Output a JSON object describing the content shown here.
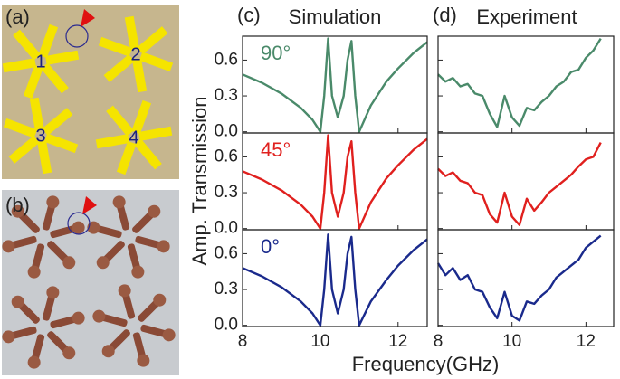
{
  "figure": {
    "panel_labels": [
      "(a)",
      "(b)",
      "(c)",
      "(d)"
    ],
    "column_titles": [
      "Simulation",
      "Experiment"
    ],
    "y_label": "Amp. Transmission",
    "x_label": "Frequency(GHz)",
    "unit_numbers": [
      "1",
      "2",
      "3",
      "4"
    ]
  },
  "chart_data": [
    {
      "type": "line",
      "annotation": "90°",
      "xlim": [
        8,
        12.75
      ],
      "ylim": [
        -0.01,
        0.8
      ],
      "xticks": [
        8,
        10,
        12
      ],
      "yticks": [
        {
          "value": 0,
          "label": "0.0"
        },
        {
          "value": 0.3,
          "label": "0.3"
        },
        {
          "value": 0.6,
          "label": "0.6"
        }
      ],
      "x": [
        8,
        8.5,
        9,
        9.5,
        9.8,
        10,
        10.1,
        10.2,
        10.3,
        10.45,
        10.6,
        10.7,
        10.8,
        10.9,
        11,
        11.3,
        11.7,
        12,
        12.4,
        12.75
      ],
      "series": [
        {
          "color": "#4a8a6a",
          "values": [
            0.48,
            0.41,
            0.32,
            0.2,
            0.1,
            0.0,
            0.3,
            0.78,
            0.3,
            0.12,
            0.3,
            0.6,
            0.76,
            0.3,
            0.0,
            0.22,
            0.42,
            0.53,
            0.66,
            0.75
          ]
        }
      ]
    },
    {
      "type": "line",
      "xlim": [
        8,
        12.75
      ],
      "ylim": [
        -0.01,
        0.8
      ],
      "xticks": [
        8,
        10,
        12
      ],
      "yticks": [
        0,
        0.3,
        0.6
      ],
      "x": [
        8,
        8.2,
        8.4,
        8.6,
        8.8,
        9,
        9.2,
        9.4,
        9.6,
        9.8,
        10,
        10.2,
        10.4,
        10.6,
        10.8,
        11,
        11.2,
        11.4,
        11.6,
        11.8,
        12,
        12.2,
        12.4
      ],
      "series": [
        {
          "color": "#4a8a6a",
          "values": [
            0.48,
            0.42,
            0.45,
            0.38,
            0.4,
            0.32,
            0.3,
            0.15,
            0.04,
            0.3,
            0.12,
            0.05,
            0.2,
            0.18,
            0.25,
            0.3,
            0.38,
            0.42,
            0.5,
            0.52,
            0.62,
            0.68,
            0.78
          ]
        }
      ]
    },
    {
      "type": "line",
      "annotation": "45°",
      "xlim": [
        8,
        12.75
      ],
      "ylim": [
        -0.01,
        0.8
      ],
      "xticks": [
        8,
        10,
        12
      ],
      "yticks": [
        {
          "value": 0,
          "label": "0.0"
        },
        {
          "value": 0.3,
          "label": "0.3"
        },
        {
          "value": 0.6,
          "label": "0.6"
        }
      ],
      "x": [
        8,
        8.5,
        9,
        9.5,
        9.8,
        10,
        10.1,
        10.2,
        10.3,
        10.45,
        10.6,
        10.7,
        10.8,
        10.9,
        11,
        11.3,
        11.7,
        12,
        12.4,
        12.75
      ],
      "series": [
        {
          "color": "#e0201e",
          "values": [
            0.48,
            0.41,
            0.32,
            0.2,
            0.1,
            0.0,
            0.3,
            0.78,
            0.3,
            0.1,
            0.3,
            0.6,
            0.73,
            0.3,
            0.0,
            0.22,
            0.42,
            0.53,
            0.66,
            0.75
          ]
        }
      ]
    },
    {
      "type": "line",
      "xlim": [
        8,
        12.75
      ],
      "ylim": [
        -0.01,
        0.8
      ],
      "xticks": [
        8,
        10,
        12
      ],
      "yticks": [
        0,
        0.3,
        0.6
      ],
      "x": [
        8,
        8.2,
        8.4,
        8.6,
        8.8,
        9,
        9.2,
        9.4,
        9.6,
        9.8,
        10,
        10.2,
        10.4,
        10.6,
        10.8,
        11,
        11.2,
        11.4,
        11.6,
        11.8,
        12,
        12.2,
        12.4
      ],
      "series": [
        {
          "color": "#e0201e",
          "values": [
            0.5,
            0.44,
            0.47,
            0.4,
            0.38,
            0.3,
            0.28,
            0.12,
            0.05,
            0.3,
            0.1,
            0.03,
            0.25,
            0.15,
            0.22,
            0.3,
            0.35,
            0.4,
            0.45,
            0.52,
            0.58,
            0.6,
            0.72
          ]
        }
      ]
    },
    {
      "type": "line",
      "annotation": "0°",
      "xlim": [
        8,
        12.75
      ],
      "ylim": [
        -0.01,
        0.8
      ],
      "xticks": [
        8,
        10,
        12
      ],
      "yticks": [
        {
          "value": 0,
          "label": "0.0"
        },
        {
          "value": 0.3,
          "label": "0.3"
        },
        {
          "value": 0.6,
          "label": "0.6"
        }
      ],
      "x": [
        8,
        8.5,
        9,
        9.5,
        9.8,
        10,
        10.1,
        10.2,
        10.3,
        10.45,
        10.6,
        10.7,
        10.8,
        10.9,
        11,
        11.3,
        11.7,
        12,
        12.4,
        12.75
      ],
      "series": [
        {
          "color": "#1a2a8c",
          "values": [
            0.48,
            0.41,
            0.32,
            0.2,
            0.1,
            0.0,
            0.3,
            0.76,
            0.3,
            0.1,
            0.3,
            0.6,
            0.74,
            0.3,
            0.0,
            0.2,
            0.38,
            0.5,
            0.63,
            0.72
          ]
        }
      ]
    },
    {
      "type": "line",
      "xlim": [
        8,
        12.75
      ],
      "ylim": [
        -0.01,
        0.8
      ],
      "xticks": [
        8,
        10,
        12
      ],
      "yticks": [
        0,
        0.3,
        0.6
      ],
      "x": [
        8,
        8.2,
        8.4,
        8.6,
        8.8,
        9,
        9.2,
        9.4,
        9.6,
        9.8,
        10,
        10.2,
        10.4,
        10.6,
        10.8,
        11,
        11.2,
        11.4,
        11.6,
        11.8,
        12,
        12.2,
        12.4
      ],
      "series": [
        {
          "color": "#1a2a8c",
          "values": [
            0.52,
            0.42,
            0.48,
            0.38,
            0.42,
            0.3,
            0.28,
            0.15,
            0.06,
            0.28,
            0.08,
            0.04,
            0.2,
            0.18,
            0.25,
            0.3,
            0.4,
            0.45,
            0.5,
            0.55,
            0.65,
            0.7,
            0.75
          ]
        }
      ]
    }
  ]
}
